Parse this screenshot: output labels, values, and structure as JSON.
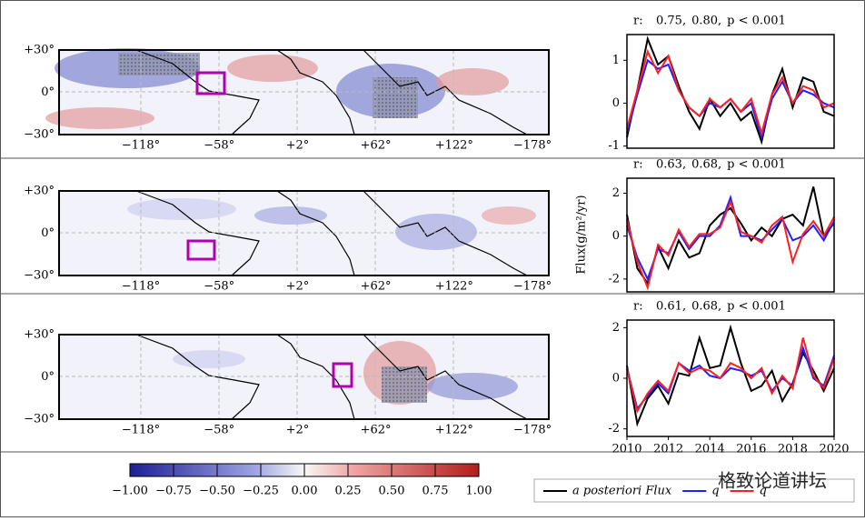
{
  "y_axis_label": "Flux(g/m²/yr)",
  "maps": [
    {
      "yticks": [
        "+30°",
        "0°",
        "−30°"
      ],
      "xticks": [
        "−118°",
        "−58°",
        "+2°",
        "+62°",
        "+122°",
        "−178°"
      ]
    },
    {
      "yticks": [
        "+30°",
        "0°",
        "−30°"
      ],
      "xticks": [
        "−118°",
        "−58°",
        "+2°",
        "+62°",
        "+122°",
        "−178°"
      ]
    },
    {
      "yticks": [
        "+30°",
        "0°",
        "−30°"
      ],
      "xticks": [
        "−118°",
        "−58°",
        "+2°",
        "+62°",
        "+122°",
        "−178°"
      ]
    }
  ],
  "colorbar": {
    "ticks": [
      {
        "value": -1,
        "label": "−1.00"
      },
      {
        "value": -0.75,
        "label": "−0.75"
      },
      {
        "value": -0.5,
        "label": "−0.50"
      },
      {
        "value": -0.25,
        "label": "−0.25"
      },
      {
        "value": 0,
        "label": "0.00"
      },
      {
        "value": 0.25,
        "label": "0.25"
      },
      {
        "value": 0.5,
        "label": "0.50"
      },
      {
        "value": 0.75,
        "label": "0.75"
      },
      {
        "value": 1,
        "label": "1.00"
      }
    ],
    "lim": [
      -1,
      1
    ]
  },
  "watermark": "格致论道讲坛",
  "chart_data": [
    {
      "type": "line",
      "r_label": "r:",
      "r_blue": "0.75,",
      "r_red": "0.80,",
      "p_text": "p < 0.001",
      "x": [
        2010,
        2010.5,
        2011,
        2011.5,
        2012,
        2012.5,
        2013,
        2013.5,
        2014,
        2014.5,
        2015,
        2015.5,
        2016,
        2016.5,
        2017,
        2017.5,
        2018,
        2018.5,
        2019,
        2019.5,
        2020
      ],
      "xlim": [
        2010,
        2020
      ],
      "ylim": [
        -1.05,
        1.6
      ],
      "yticks": [
        -1,
        0,
        1
      ],
      "series": [
        {
          "name": "a posteriori Flux",
          "color": "#000000",
          "values": [
            -0.8,
            0.3,
            1.5,
            0.9,
            1.1,
            0.4,
            -0.2,
            -0.6,
            0.1,
            -0.3,
            0.0,
            -0.4,
            -0.2,
            -0.9,
            0.2,
            0.8,
            -0.1,
            0.6,
            0.5,
            -0.2,
            -0.3
          ]
        },
        {
          "name": "q",
          "color": "#1f1fff",
          "values": [
            -0.7,
            0.2,
            1.0,
            0.8,
            0.9,
            0.3,
            -0.1,
            -0.3,
            0.0,
            -0.1,
            0.1,
            -0.2,
            0.0,
            -0.8,
            0.1,
            0.5,
            0.0,
            0.3,
            0.2,
            0.0,
            -0.1
          ]
        },
        {
          "name": "q",
          "color": "#ff1f1f",
          "values": [
            -0.6,
            0.3,
            1.2,
            0.7,
            1.1,
            0.3,
            -0.1,
            -0.3,
            0.1,
            -0.1,
            0.1,
            -0.2,
            0.1,
            -0.7,
            0.2,
            0.6,
            0.0,
            0.4,
            0.3,
            -0.1,
            0.0
          ]
        }
      ]
    },
    {
      "type": "line",
      "r_label": "r:",
      "r_blue": "0.63,",
      "r_red": "0.68,",
      "p_text": "p < 0.001",
      "x": [
        2010,
        2010.5,
        2011,
        2011.5,
        2012,
        2012.5,
        2013,
        2013.5,
        2014,
        2014.5,
        2015,
        2015.5,
        2016,
        2016.5,
        2017,
        2017.5,
        2018,
        2018.5,
        2019,
        2019.5,
        2020
      ],
      "xlim": [
        2010,
        2020
      ],
      "ylim": [
        -2.6,
        2.7
      ],
      "yticks": [
        -2,
        0,
        2
      ],
      "series": [
        {
          "name": "a posteriori Flux",
          "color": "#000000",
          "values": [
            1.0,
            -1.5,
            -2.2,
            -0.5,
            -1.5,
            -0.2,
            -1.0,
            -0.8,
            0.5,
            1.0,
            1.3,
            0.6,
            -0.2,
            0.4,
            0.0,
            0.8,
            1.0,
            0.5,
            2.3,
            0.0,
            0.6
          ]
        },
        {
          "name": "q",
          "color": "#1f1fff",
          "values": [
            0.5,
            -1.0,
            -2.0,
            -0.6,
            -0.8,
            0.2,
            -0.6,
            0.0,
            0.0,
            0.5,
            1.8,
            0.0,
            0.0,
            -0.2,
            0.3,
            0.8,
            -0.2,
            0.0,
            0.5,
            -0.2,
            0.7
          ]
        },
        {
          "name": "q",
          "color": "#ff1f1f",
          "values": [
            0.8,
            -1.2,
            -2.4,
            -0.4,
            -0.9,
            0.3,
            -0.5,
            0.1,
            0.1,
            0.4,
            1.6,
            0.2,
            0.0,
            -0.3,
            0.5,
            0.9,
            -1.2,
            0.1,
            0.7,
            0.0,
            0.9
          ]
        }
      ]
    },
    {
      "type": "line",
      "r_label": "r:",
      "r_blue": "0.61,",
      "r_red": "0.68,",
      "p_text": "p < 0.001",
      "x": [
        2010,
        2010.5,
        2011,
        2011.5,
        2012,
        2012.5,
        2013,
        2013.5,
        2014,
        2014.5,
        2015,
        2015.5,
        2016,
        2016.5,
        2017,
        2017.5,
        2018,
        2018.5,
        2019,
        2019.5,
        2020
      ],
      "xlim": [
        2010,
        2020
      ],
      "ylim": [
        -2.3,
        2.3
      ],
      "yticks": [
        -2,
        0,
        2
      ],
      "xticks": [
        2010,
        2012,
        2014,
        2016,
        2018,
        2020
      ],
      "series": [
        {
          "name": "a posteriori Flux",
          "color": "#000000",
          "values": [
            0.5,
            -1.8,
            -0.8,
            -0.3,
            -1.0,
            0.2,
            0.1,
            1.6,
            0.4,
            0.5,
            2.0,
            0.6,
            -0.5,
            -0.3,
            0.3,
            -0.9,
            -0.2,
            1.0,
            0.3,
            -0.5,
            0.4
          ]
        },
        {
          "name": "q",
          "color": "#1f1fff",
          "values": [
            0.4,
            -1.2,
            -0.7,
            -0.2,
            -0.6,
            0.6,
            0.3,
            0.5,
            0.1,
            0.0,
            0.4,
            0.3,
            0.1,
            0.3,
            -0.5,
            0.0,
            -0.3,
            1.2,
            0.0,
            -0.3,
            0.9
          ]
        },
        {
          "name": "q",
          "color": "#ff1f1f",
          "values": [
            0.4,
            -1.3,
            -0.6,
            -0.1,
            -0.5,
            0.6,
            0.2,
            0.4,
            0.3,
            0.0,
            0.6,
            0.4,
            0.0,
            0.4,
            -0.6,
            0.1,
            -0.4,
            1.6,
            0.1,
            -0.4,
            0.8
          ]
        }
      ]
    }
  ]
}
